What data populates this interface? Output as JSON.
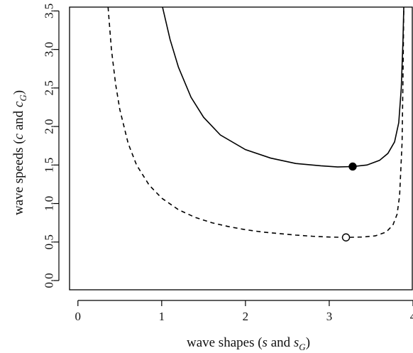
{
  "chart_data": {
    "type": "line",
    "title": "",
    "xlabel": {
      "pre": "wave shapes (",
      "var1": "s",
      "mid": " and ",
      "var2": "s",
      "sub": "G",
      "post": ")"
    },
    "ylabel": {
      "pre": "wave speeds (",
      "var1": "c",
      "mid": " and ",
      "var2": "c",
      "sub": "G",
      "post": ")"
    },
    "xlim": [
      -0.1,
      4.0
    ],
    "ylim": [
      -0.12,
      3.55
    ],
    "xticks": [
      0,
      1,
      2,
      3,
      4
    ],
    "xtick_labels": [
      "0",
      "1",
      "2",
      "3",
      "4"
    ],
    "yticks": [
      0.0,
      0.5,
      1.0,
      1.5,
      2.0,
      2.5,
      3.0,
      3.5
    ],
    "ytick_labels": [
      "0.0",
      "0.5",
      "1.0",
      "1.5",
      "2.0",
      "2.5",
      "3.0",
      "3.5"
    ],
    "grid": false,
    "legend": "none",
    "series": [
      {
        "style": "solid",
        "color": "#000000",
        "x": [
          1.01,
          1.1,
          1.2,
          1.35,
          1.5,
          1.7,
          2.0,
          2.3,
          2.6,
          2.9,
          3.1,
          3.28,
          3.45,
          3.6,
          3.7,
          3.78,
          3.83,
          3.86,
          3.88,
          3.89
        ],
        "y": [
          3.55,
          3.13,
          2.77,
          2.38,
          2.12,
          1.89,
          1.7,
          1.59,
          1.52,
          1.49,
          1.475,
          1.48,
          1.5,
          1.56,
          1.65,
          1.8,
          2.05,
          2.5,
          3.1,
          3.55
        ]
      },
      {
        "style": "dashed",
        "color": "#000000",
        "x": [
          0.36,
          0.4,
          0.45,
          0.5,
          0.6,
          0.7,
          0.85,
          1.0,
          1.2,
          1.4,
          1.6,
          1.8,
          2.0,
          2.2,
          2.4,
          2.6,
          2.8,
          3.0,
          3.2,
          3.4,
          3.55,
          3.68,
          3.76,
          3.81,
          3.84,
          3.87,
          3.88,
          3.89
        ],
        "y": [
          3.55,
          3.0,
          2.55,
          2.22,
          1.78,
          1.5,
          1.24,
          1.07,
          0.92,
          0.82,
          0.75,
          0.7,
          0.66,
          0.63,
          0.61,
          0.59,
          0.575,
          0.565,
          0.56,
          0.565,
          0.58,
          0.63,
          0.72,
          0.86,
          1.1,
          1.8,
          2.6,
          3.55
        ]
      }
    ],
    "points": [
      {
        "x": 3.28,
        "y": 1.48,
        "fill": "filled"
      },
      {
        "x": 3.2,
        "y": 0.56,
        "fill": "open"
      }
    ]
  }
}
